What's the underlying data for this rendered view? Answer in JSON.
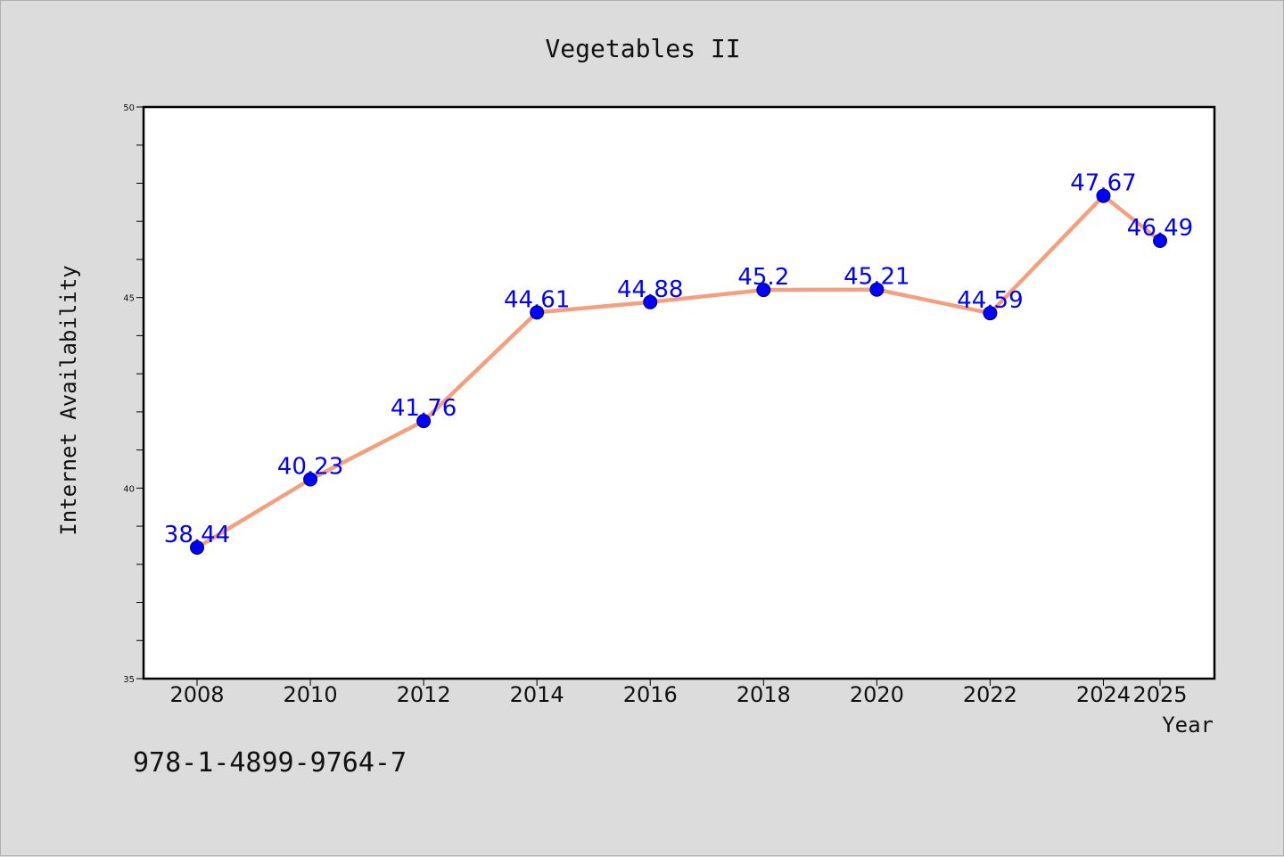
{
  "chart_data": {
    "type": "line",
    "title": "Vegetables II",
    "xlabel": "Year",
    "ylabel": "Internet Availability",
    "categories": [
      "2008",
      "2010",
      "2012",
      "2014",
      "2016",
      "2018",
      "2020",
      "2022",
      "2024",
      "2025"
    ],
    "series": [
      {
        "values": [
          38.44,
          40.23,
          41.76,
          44.61,
          44.88,
          45.2,
          45.21,
          44.59,
          47.67,
          46.49
        ],
        "labels": [
          "38.44",
          "40.23",
          "41.76",
          "44.61",
          "44.88",
          "45.2",
          "45.21",
          "44.59",
          "47.67",
          "46.49"
        ],
        "line_color": "#f4a07e",
        "marker_color": "#0000ff"
      }
    ],
    "ylim": [
      35,
      50
    ],
    "yticks": [
      "35",
      "40",
      "45",
      "50"
    ],
    "grid": false,
    "legend": "none",
    "label_color": "#0000ff"
  },
  "footer": {
    "code": "978-1-4899-9764-7"
  }
}
